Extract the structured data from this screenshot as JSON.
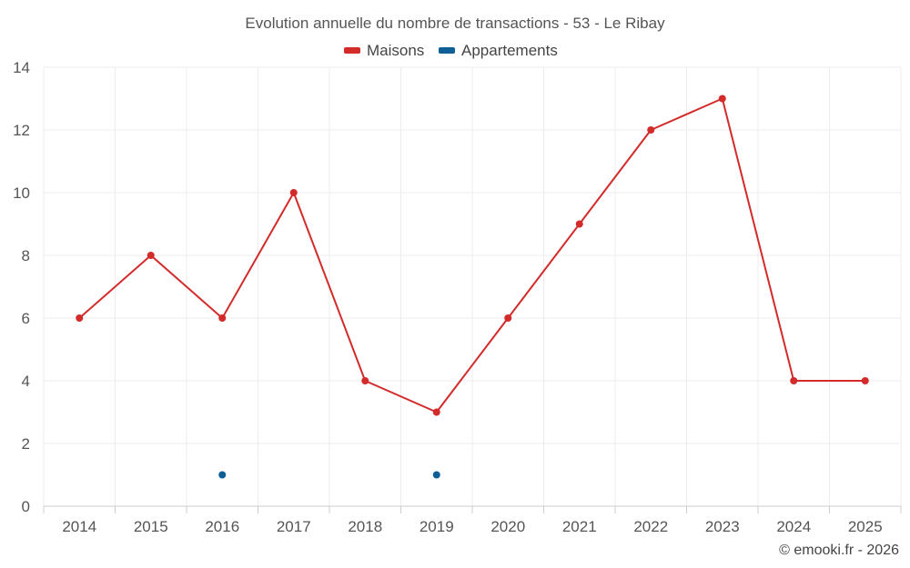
{
  "chart_data": {
    "type": "line",
    "title": "Evolution annuelle du nombre de transactions - 53 - Le Ribay",
    "categories": [
      "2014",
      "2015",
      "2016",
      "2017",
      "2018",
      "2019",
      "2020",
      "2021",
      "2022",
      "2023",
      "2024",
      "2025"
    ],
    "series": [
      {
        "name": "Maisons",
        "color": "#d32a2a",
        "values": [
          6,
          8,
          6,
          10,
          4,
          3,
          6,
          9,
          12,
          13,
          4,
          4
        ]
      },
      {
        "name": "Appartements",
        "color": "#0d5f96",
        "values": [
          null,
          null,
          1,
          null,
          null,
          1,
          null,
          null,
          null,
          null,
          null,
          null
        ]
      }
    ],
    "ylim": [
      0,
      14
    ],
    "yticks": [
      0,
      2,
      4,
      6,
      8,
      10,
      12,
      14
    ],
    "xlabel": "",
    "ylabel": "",
    "grid": true,
    "legend_position": "top-center"
  },
  "credits": "© emooki.fr - 2026"
}
